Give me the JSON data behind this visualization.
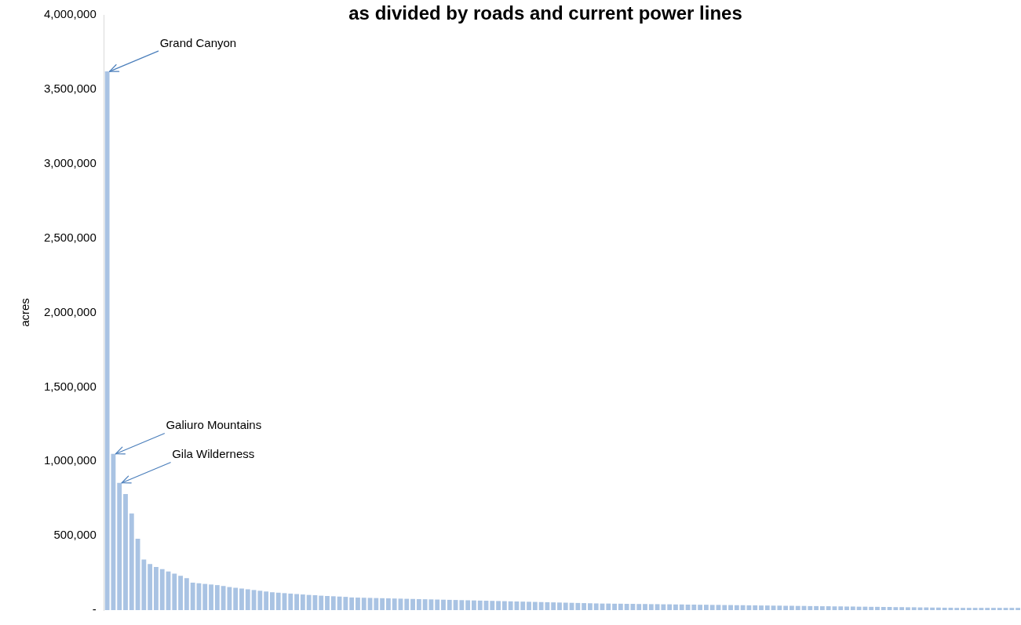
{
  "chart_data": {
    "type": "bar",
    "title": "as divided by roads and current power lines",
    "ylabel": "acres",
    "categories": [
      null,
      null,
      null,
      null,
      null,
      null,
      null,
      null,
      null,
      null,
      null,
      null,
      null,
      null,
      null,
      null,
      null,
      null,
      null,
      null,
      null,
      null,
      null,
      null,
      null,
      null,
      null,
      null,
      null,
      null,
      null,
      null,
      null,
      null,
      null,
      null,
      null,
      null,
      null,
      null,
      null,
      null,
      null,
      null,
      null,
      null,
      null,
      null,
      null,
      null,
      null,
      null,
      null,
      null,
      null,
      null,
      null,
      null,
      null,
      null,
      null,
      null,
      null,
      null,
      null,
      null,
      null,
      null,
      null,
      null,
      null,
      null,
      null,
      null,
      null,
      null,
      null,
      null,
      null,
      null,
      null,
      null,
      null,
      null,
      null,
      null,
      null,
      null,
      null,
      null,
      null,
      null,
      null,
      null,
      null,
      null,
      null,
      null,
      null,
      null,
      null,
      null,
      null,
      null,
      null,
      null,
      null,
      null,
      null,
      null,
      null,
      null,
      null,
      null,
      null,
      null,
      null,
      null,
      null,
      null,
      null,
      null,
      null,
      null,
      null,
      null,
      null,
      null,
      null,
      null,
      null,
      null,
      null,
      null,
      null,
      null,
      null,
      null,
      null,
      null,
      null,
      null,
      null,
      null,
      null,
      null,
      null,
      null,
      null,
      null
    ],
    "values": [
      3620000,
      1050000,
      855000,
      780000,
      650000,
      480000,
      340000,
      310000,
      290000,
      275000,
      260000,
      245000,
      230000,
      215000,
      185000,
      180000,
      176000,
      172000,
      168000,
      162000,
      155000,
      150000,
      145000,
      140000,
      135000,
      130000,
      125000,
      120000,
      117000,
      114000,
      111000,
      108000,
      105000,
      102000,
      100000,
      97000,
      95000,
      93000,
      91000,
      89000,
      85000,
      84000,
      83000,
      82000,
      81000,
      80000,
      79000,
      78000,
      77000,
      76000,
      75000,
      74000,
      73000,
      72000,
      71000,
      70000,
      69000,
      68000,
      67000,
      66000,
      65000,
      64000,
      63000,
      62000,
      61000,
      60000,
      59000,
      58000,
      57000,
      56000,
      55000,
      54000,
      53000,
      52000,
      51000,
      50000,
      49000,
      48000,
      47000,
      46000,
      45000,
      44000,
      44000,
      43000,
      43000,
      42000,
      42000,
      41000,
      41000,
      40000,
      40000,
      39000,
      39000,
      38000,
      38000,
      37000,
      37000,
      36000,
      36000,
      35000,
      35000,
      34000,
      34000,
      33000,
      33000,
      32000,
      32000,
      31000,
      31000,
      30000,
      30000,
      29000,
      29000,
      28000,
      28000,
      27000,
      27000,
      26000,
      26000,
      25000,
      25000,
      24000,
      24000,
      23000,
      23000,
      22000,
      22000,
      21000,
      21000,
      20000,
      20000,
      19000,
      19000,
      18000,
      18000,
      17000,
      17000,
      16000,
      16000,
      15000,
      15000,
      15000,
      15000,
      15000,
      15000,
      15000,
      15000,
      15000,
      15000,
      15000
    ],
    "color": "#a9c3e3",
    "ylim": [
      0,
      4000000
    ],
    "yticks": [
      {
        "value": 0,
        "label": "-"
      },
      {
        "value": 500000,
        "label": "500,000"
      },
      {
        "value": 1000000,
        "label": "1,000,000"
      },
      {
        "value": 1500000,
        "label": "1,500,000"
      },
      {
        "value": 2000000,
        "label": "2,000,000"
      },
      {
        "value": 2500000,
        "label": "2,500,000"
      },
      {
        "value": 3000000,
        "label": "3,000,000"
      },
      {
        "value": 3500000,
        "label": "3,500,000"
      },
      {
        "value": 4000000,
        "label": "4,000,000"
      }
    ],
    "tick_labels": "y",
    "grid": false,
    "legend": false,
    "annotations": [
      "Grand Canyon",
      "Galiuro Mountains",
      "Gila Wilderness"
    ]
  }
}
